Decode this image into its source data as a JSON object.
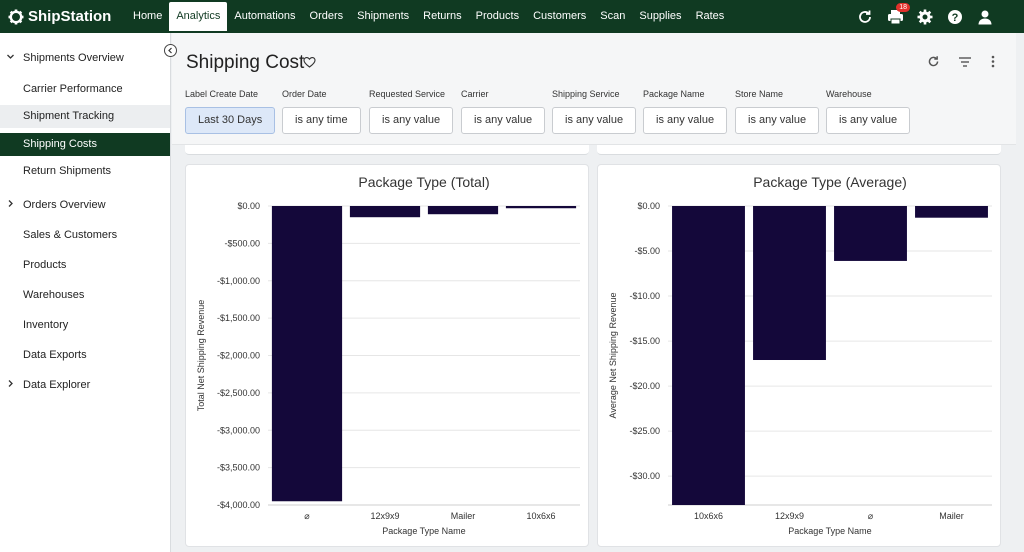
{
  "app": {
    "name": "ShipStation",
    "notification_count": "18"
  },
  "nav": [
    "Home",
    "Analytics",
    "Automations",
    "Orders",
    "Shipments",
    "Returns",
    "Products",
    "Customers",
    "Scan",
    "Supplies",
    "Rates"
  ],
  "nav_active": "Analytics",
  "sidebar": {
    "items": [
      {
        "label": "Shipments Overview",
        "chevron": "down"
      },
      {
        "label": "Carrier Performance"
      },
      {
        "label": "Shipment Tracking"
      },
      {
        "label": "Shipping Costs"
      },
      {
        "label": "Return Shipments"
      },
      {
        "label": "Orders Overview",
        "chevron": "right"
      },
      {
        "label": "Sales & Customers"
      },
      {
        "label": "Products"
      },
      {
        "label": "Warehouses"
      },
      {
        "label": "Inventory"
      },
      {
        "label": "Data Exports"
      },
      {
        "label": "Data Explorer",
        "chevron": "right"
      }
    ]
  },
  "page": {
    "title": "Shipping Cost"
  },
  "filters": [
    {
      "label": "Label Create Date",
      "value": "Last 30 Days"
    },
    {
      "label": "Order Date",
      "value": "is any time"
    },
    {
      "label": "Requested Service",
      "value": "is any value"
    },
    {
      "label": "Carrier",
      "value": "is any value"
    },
    {
      "label": "Shipping Service",
      "value": "is any value"
    },
    {
      "label": "Package Name",
      "value": "is any value"
    },
    {
      "label": "Store Name",
      "value": "is any value"
    },
    {
      "label": "Warehouse",
      "value": "is any value"
    }
  ],
  "colors": {
    "brand": "#103a22",
    "bar": "#14083a"
  },
  "chart_data": [
    {
      "type": "bar",
      "title": "Package Type (Total)",
      "xlabel": "Package Type Name",
      "ylabel": "Total Net Shipping Revenue",
      "categories": [
        "⌀",
        "12x9x9",
        "Mailer",
        "10x6x6"
      ],
      "values": [
        -3950,
        -150,
        -110,
        -30
      ],
      "ylim": [
        -4000,
        0
      ],
      "yticks": [
        0,
        -500,
        -1000,
        -1500,
        -2000,
        -2500,
        -3000,
        -3500,
        -4000
      ],
      "ytick_labels": [
        "$0.00",
        "-$500.00",
        "-$1,000.00",
        "-$1,500.00",
        "-$2,000.00",
        "-$2,500.00",
        "-$3,000.00",
        "-$3,500.00",
        "-$4,000.00"
      ],
      "grid": true
    },
    {
      "type": "bar",
      "title": "Package Type (Average)",
      "xlabel": "Package Type Name",
      "ylabel": "Average Net Shipping Revenue",
      "categories": [
        "10x6x6",
        "12x9x9",
        "⌀",
        "Mailer"
      ],
      "values": [
        -33.2,
        -17.1,
        -6.1,
        -1.3
      ],
      "ylim": [
        -33.2,
        0
      ],
      "yticks": [
        0,
        -5,
        -10,
        -15,
        -20,
        -25,
        -30
      ],
      "ytick_labels": [
        "$0.00",
        "-$5.00",
        "-$10.00",
        "-$15.00",
        "-$20.00",
        "-$25.00",
        "-$30.00"
      ],
      "grid": true
    }
  ]
}
